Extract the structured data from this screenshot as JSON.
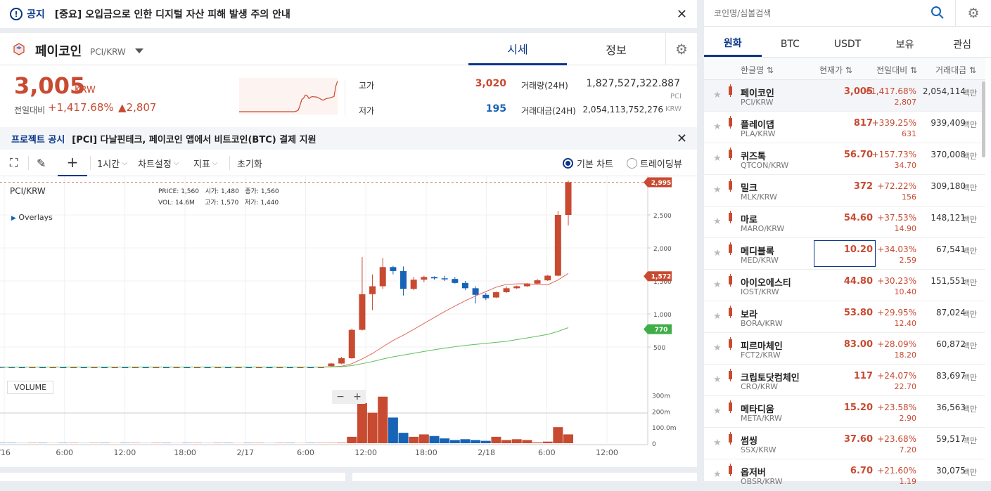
{
  "notice": {
    "label": "공지",
    "text": "[중요] 오입금으로 인한 디지털 자산 피해 발생 주의 안내"
  },
  "coin": {
    "name": "페이코인",
    "pair": "PCI/KRW"
  },
  "tabs": {
    "price": "시세",
    "info": "정보"
  },
  "price": {
    "current": "3,005",
    "unit": "KRW",
    "change_label": "전일대비",
    "change_pct": "+1,417.68%",
    "change_amt": "▲2,807"
  },
  "stats": {
    "high_label": "고가",
    "high": "3,020",
    "low_label": "저가",
    "low": "195",
    "vol_label": "거래량(24H)",
    "vol": "1,827,527,322.887",
    "vol_unit": "PCI",
    "amt_label": "거래대금(24H)",
    "amt": "2,054,113,752,276",
    "amt_unit": "KRW"
  },
  "project_notice": {
    "label": "프로젝트 공시",
    "text": "[PCI] 다날핀테크, 페이코인 앱에서 비트코인(BTC) 결제 지원"
  },
  "toolbar": {
    "interval": "1시간",
    "settings": "차트설정",
    "indicator": "지표",
    "reset": "초기화",
    "basic_chart": "기본 차트",
    "tradingview": "트레이딩뷰"
  },
  "chart_info": {
    "pair": "PCI/KRW",
    "overlays": "Overlays",
    "price_lbl": "PRICE:",
    "price": "1,560",
    "open_lbl": "시가:",
    "open": "1,480",
    "close_lbl": "종가:",
    "close": "1,560",
    "vol_lbl": "VOL:",
    "vol": "14.6M",
    "high_lbl": "고가:",
    "high": "1,570",
    "low_lbl": "저가:",
    "low": "1,440",
    "volume_label": "VOLUME",
    "zoom_minus": "−",
    "zoom_plus": "+"
  },
  "chart_data": {
    "type": "candlestick",
    "price_axis": {
      "ticks": [
        "2,500",
        "2,000",
        "1,500",
        "1,000",
        "500"
      ],
      "tick_values": [
        2500,
        2000,
        1500,
        1000,
        500
      ],
      "range": [
        0,
        3000
      ]
    },
    "volume_axis": {
      "ticks": [
        "300m",
        "200m",
        "100.0m",
        "0"
      ],
      "tick_values": [
        300,
        200,
        100,
        0
      ],
      "range": [
        0,
        350
      ]
    },
    "x_ticks": [
      "/16",
      "6:00",
      "12:00",
      "18:00",
      "2/17",
      "6:00",
      "12:00",
      "18:00",
      "2/18",
      "6:00",
      "12:00"
    ],
    "badges": [
      {
        "label": "2,995",
        "value": 2995,
        "color": "#c84a31"
      },
      {
        "label": "1,572",
        "value": 1572,
        "color": "#c84a31"
      },
      {
        "label": "770",
        "value": 770,
        "color": "#3fae49"
      }
    ],
    "candles": [
      {
        "o": 200,
        "h": 200,
        "l": 195,
        "c": 196
      },
      {
        "o": 198,
        "h": 200,
        "l": 195,
        "c": 197
      },
      {
        "o": 197,
        "h": 199,
        "l": 195,
        "c": 196
      },
      {
        "o": 196,
        "h": 199,
        "l": 194,
        "c": 197
      },
      {
        "o": 197,
        "h": 199,
        "l": 195,
        "c": 196
      },
      {
        "o": 196,
        "h": 199,
        "l": 194,
        "c": 197
      },
      {
        "o": 197,
        "h": 199,
        "l": 195,
        "c": 196
      },
      {
        "o": 196,
        "h": 199,
        "l": 194,
        "c": 197
      },
      {
        "o": 197,
        "h": 199,
        "l": 195,
        "c": 196
      },
      {
        "o": 196,
        "h": 199,
        "l": 194,
        "c": 197
      },
      {
        "o": 197,
        "h": 199,
        "l": 195,
        "c": 196
      },
      {
        "o": 196,
        "h": 199,
        "l": 194,
        "c": 197
      },
      {
        "o": 197,
        "h": 199,
        "l": 195,
        "c": 196
      },
      {
        "o": 196,
        "h": 199,
        "l": 194,
        "c": 197
      },
      {
        "o": 197,
        "h": 199,
        "l": 195,
        "c": 196
      },
      {
        "o": 196,
        "h": 199,
        "l": 194,
        "c": 197
      },
      {
        "o": 197,
        "h": 199,
        "l": 195,
        "c": 196
      },
      {
        "o": 196,
        "h": 199,
        "l": 194,
        "c": 197
      },
      {
        "o": 197,
        "h": 199,
        "l": 195,
        "c": 196
      },
      {
        "o": 196,
        "h": 199,
        "l": 194,
        "c": 197
      },
      {
        "o": 197,
        "h": 199,
        "l": 195,
        "c": 196
      },
      {
        "o": 196,
        "h": 199,
        "l": 194,
        "c": 197
      },
      {
        "o": 197,
        "h": 199,
        "l": 195,
        "c": 196
      },
      {
        "o": 196,
        "h": 199,
        "l": 194,
        "c": 197
      },
      {
        "o": 197,
        "h": 199,
        "l": 195,
        "c": 196
      },
      {
        "o": 196,
        "h": 199,
        "l": 194,
        "c": 197
      },
      {
        "o": 197,
        "h": 199,
        "l": 195,
        "c": 196
      },
      {
        "o": 196,
        "h": 199,
        "l": 194,
        "c": 197
      },
      {
        "o": 197,
        "h": 199,
        "l": 195,
        "c": 196
      },
      {
        "o": 196,
        "h": 199,
        "l": 194,
        "c": 197
      },
      {
        "o": 197,
        "h": 199,
        "l": 195,
        "c": 196
      },
      {
        "o": 196,
        "h": 199,
        "l": 194,
        "c": 197
      },
      {
        "o": 210,
        "h": 260,
        "l": 200,
        "c": 250
      },
      {
        "o": 250,
        "h": 350,
        "l": 240,
        "c": 330
      },
      {
        "o": 330,
        "h": 780,
        "l": 320,
        "c": 760
      },
      {
        "o": 760,
        "h": 1860,
        "l": 750,
        "c": 1300
      },
      {
        "o": 1300,
        "h": 1600,
        "l": 1060,
        "c": 1420
      },
      {
        "o": 1420,
        "h": 1850,
        "l": 1380,
        "c": 1710
      },
      {
        "o": 1710,
        "h": 1730,
        "l": 1600,
        "c": 1650
      },
      {
        "o": 1650,
        "h": 1720,
        "l": 1280,
        "c": 1380
      },
      {
        "o": 1380,
        "h": 1560,
        "l": 1360,
        "c": 1520
      },
      {
        "o": 1520,
        "h": 1580,
        "l": 1480,
        "c": 1560
      },
      {
        "o": 1560,
        "h": 1570,
        "l": 1520,
        "c": 1540
      },
      {
        "o": 1540,
        "h": 1580,
        "l": 1500,
        "c": 1530
      },
      {
        "o": 1530,
        "h": 1560,
        "l": 1460,
        "c": 1470
      },
      {
        "o": 1470,
        "h": 1500,
        "l": 1360,
        "c": 1390
      },
      {
        "o": 1390,
        "h": 1420,
        "l": 1160,
        "c": 1290
      },
      {
        "o": 1290,
        "h": 1320,
        "l": 1210,
        "c": 1240
      },
      {
        "o": 1250,
        "h": 1340,
        "l": 1240,
        "c": 1330
      },
      {
        "o": 1330,
        "h": 1420,
        "l": 1320,
        "c": 1390
      },
      {
        "o": 1390,
        "h": 1430,
        "l": 1380,
        "c": 1420
      },
      {
        "o": 1420,
        "h": 1470,
        "l": 1410,
        "c": 1460
      },
      {
        "o": 1460,
        "h": 1530,
        "l": 1450,
        "c": 1510
      },
      {
        "o": 1510,
        "h": 1590,
        "l": 1500,
        "c": 1580
      },
      {
        "o": 1580,
        "h": 2560,
        "l": 1570,
        "c": 2500
      },
      {
        "o": 2500,
        "h": 3020,
        "l": 2340,
        "c": 2995
      }
    ],
    "volume": [
      2,
      2,
      1,
      2,
      2,
      1,
      2,
      2,
      1,
      2,
      2,
      1,
      2,
      2,
      1,
      2,
      2,
      1,
      2,
      2,
      1,
      2,
      2,
      1,
      2,
      2,
      1,
      2,
      2,
      1,
      2,
      2,
      2,
      3,
      40,
      250,
      190,
      290,
      160,
      65,
      40,
      55,
      45,
      30,
      20,
      25,
      20,
      15,
      40,
      20,
      25,
      20,
      5,
      10,
      100,
      55
    ]
  },
  "market": {
    "search_placeholder": "코인명/심볼검색",
    "tabs": [
      "원화",
      "BTC",
      "USDT",
      "보유",
      "관심"
    ],
    "columns": {
      "name": "한글명 ⇅",
      "price": "현재가 ⇅",
      "change": "전일대비 ⇅",
      "amount": "거래대금 ⇅"
    },
    "unit": "백만",
    "rows": [
      {
        "name": "페이코인",
        "pair": "PCI/KRW",
        "price": "3,005",
        "pct": "+1,417.68%",
        "amt": "2,807",
        "vol": "2,054,114"
      },
      {
        "name": "플레이댑",
        "pair": "PLA/KRW",
        "price": "817",
        "pct": "+339.25%",
        "amt": "631",
        "vol": "939,409"
      },
      {
        "name": "퀴즈톡",
        "pair": "QTCON/KRW",
        "price": "56.70",
        "pct": "+157.73%",
        "amt": "34.70",
        "vol": "370,008"
      },
      {
        "name": "밀크",
        "pair": "MLK/KRW",
        "price": "372",
        "pct": "+72.22%",
        "amt": "156",
        "vol": "309,180"
      },
      {
        "name": "마로",
        "pair": "MARO/KRW",
        "price": "54.60",
        "pct": "+37.53%",
        "amt": "14.90",
        "vol": "148,121"
      },
      {
        "name": "메디블록",
        "pair": "MED/KRW",
        "price": "10.20",
        "pct": "+34.03%",
        "amt": "2.59",
        "vol": "67,541"
      },
      {
        "name": "아이오에스티",
        "pair": "IOST/KRW",
        "price": "44.80",
        "pct": "+30.23%",
        "amt": "10.40",
        "vol": "151,551"
      },
      {
        "name": "보라",
        "pair": "BORA/KRW",
        "price": "53.80",
        "pct": "+29.95%",
        "amt": "12.40",
        "vol": "87,024"
      },
      {
        "name": "피르마체인",
        "pair": "FCT2/KRW",
        "price": "83.00",
        "pct": "+28.09%",
        "amt": "18.20",
        "vol": "60,872"
      },
      {
        "name": "크립토닷컴체인",
        "pair": "CRO/KRW",
        "price": "117",
        "pct": "+24.07%",
        "amt": "22.70",
        "vol": "83,697"
      },
      {
        "name": "메타디움",
        "pair": "META/KRW",
        "price": "15.20",
        "pct": "+23.58%",
        "amt": "2.90",
        "vol": "36,563"
      },
      {
        "name": "썸씽",
        "pair": "SSX/KRW",
        "price": "37.60",
        "pct": "+23.68%",
        "amt": "7.20",
        "vol": "59,517"
      },
      {
        "name": "옵저버",
        "pair": "OBSR/KRW",
        "price": "6.70",
        "pct": "+21.60%",
        "amt": "1.19",
        "vol": "30,075"
      }
    ]
  },
  "colors": {
    "up": "#c84a31",
    "down": "#1763b6",
    "brand": "#093687",
    "ma_red": "#e0685a",
    "ma_green": "#5cbf5a"
  }
}
